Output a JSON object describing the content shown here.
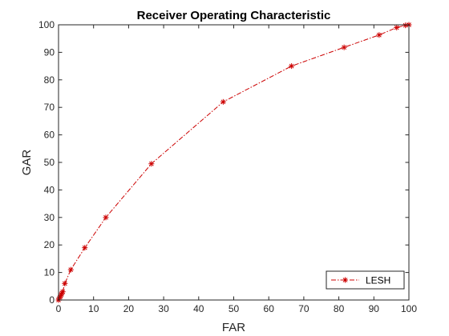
{
  "chart_data": {
    "type": "line",
    "title": "Receiver Operating Characteristic",
    "xlabel": "FAR",
    "ylabel": "GAR",
    "xlim": [
      0,
      100
    ],
    "ylim": [
      0,
      100
    ],
    "xticks": [
      0,
      10,
      20,
      30,
      40,
      50,
      60,
      70,
      80,
      90,
      100
    ],
    "yticks": [
      0,
      10,
      20,
      30,
      40,
      50,
      60,
      70,
      80,
      90,
      100
    ],
    "grid": false,
    "legend_position": "bottom-right",
    "series": [
      {
        "name": "LESH",
        "color": "#cc0000",
        "line_style": "dash-dot",
        "marker": "asterisk",
        "x": [
          0,
          0.2,
          0.4,
          0.6,
          0.8,
          1.0,
          1.2,
          1.8,
          3.5,
          7.5,
          13.5,
          26.5,
          47,
          66.5,
          81.5,
          91.5,
          96.5,
          99,
          100
        ],
        "y": [
          0,
          0.5,
          1.0,
          1.5,
          2.0,
          2.5,
          3.0,
          6.0,
          11.0,
          19.0,
          30.0,
          49.5,
          72.0,
          85.0,
          91.8,
          96.3,
          99.0,
          99.8,
          100
        ]
      }
    ]
  }
}
